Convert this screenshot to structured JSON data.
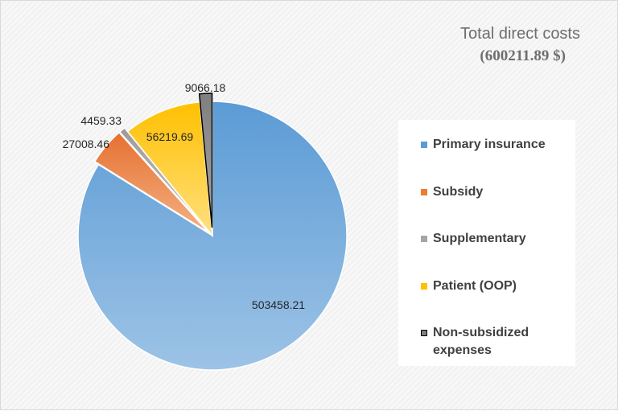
{
  "title": {
    "line1": "Total direct costs",
    "line2": "(600211.89 $)"
  },
  "chart_data": {
    "type": "pie",
    "categories": [
      "Primary insurance",
      "Subsidy",
      "Supplementary",
      "Patient (OOP)",
      "Non-subsidized expenses"
    ],
    "values": [
      503458.21,
      27008.46,
      4459.33,
      56219.69,
      9066.18
    ],
    "data_labels": [
      "503458.21",
      "27008.46",
      "4459.33",
      "56219.69",
      "9066.18"
    ],
    "colors": [
      "#5b9bd5",
      "#ed7d31",
      "#a5a5a5",
      "#ffc000",
      "#7f7f7f"
    ],
    "legend_position": "right",
    "start_angle": "12 o'clock, clockwise",
    "highlighted_slice": "Non-subsidized expenses"
  },
  "legend": {
    "items": [
      {
        "label": "Primary insurance",
        "color": "#5b9bd5"
      },
      {
        "label": "Subsidy",
        "color": "#ed7d31"
      },
      {
        "label": "Supplementary",
        "color": "#a5a5a5"
      },
      {
        "label": "Patient (OOP)",
        "color": "#ffc000"
      },
      {
        "label": "Non-subsidized expenses",
        "color": "#7f7f7f"
      }
    ]
  }
}
